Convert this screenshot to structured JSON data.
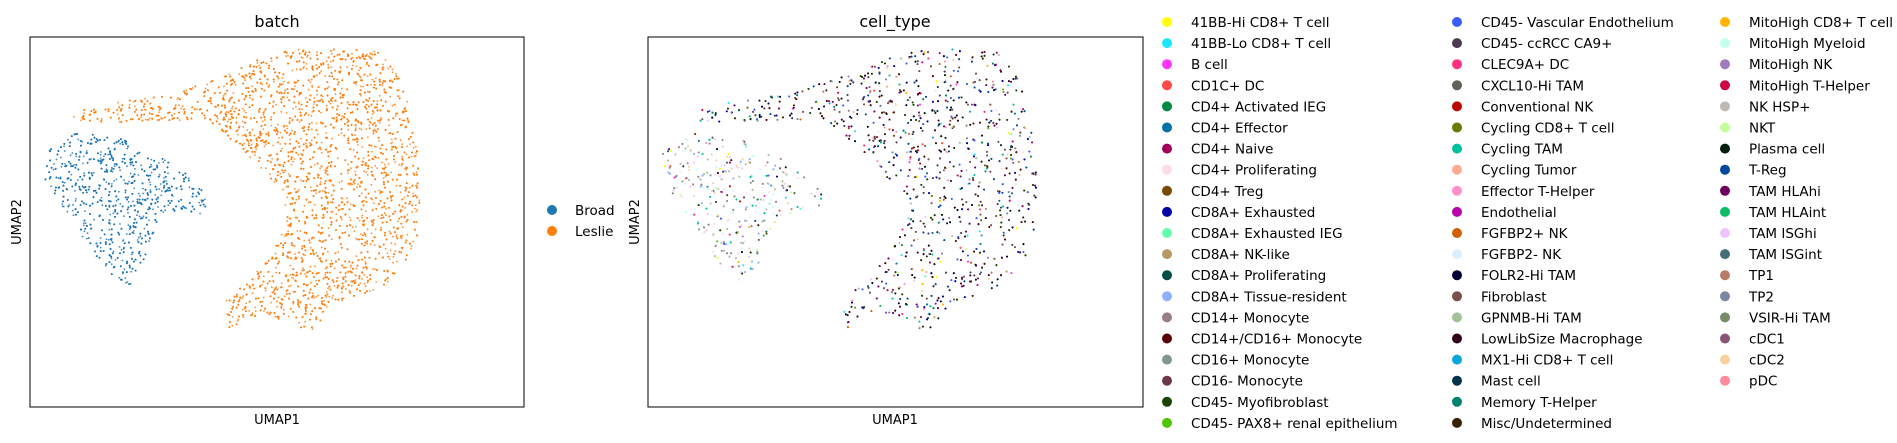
{
  "chart_data": [
    {
      "type": "scatter",
      "title": "batch",
      "xlabel": "UMAP1",
      "ylabel": "UMAP2",
      "grid": false,
      "ticks": false,
      "legend": {
        "placement": "right",
        "entries": [
          {
            "name": "Broad",
            "color": "#1f77b4"
          },
          {
            "name": "Leslie",
            "color": "#ff7f0e"
          }
        ]
      }
    },
    {
      "type": "scatter",
      "title": "cell_type",
      "xlabel": "UMAP1",
      "ylabel": "UMAP2",
      "grid": false,
      "ticks": false,
      "legend": {
        "placement": "right",
        "columns": 3,
        "entries": [
          {
            "name": "41BB-Hi CD8+ T cell",
            "color": "#ffff00"
          },
          {
            "name": "41BB-Lo CD8+ T cell",
            "color": "#1ce6ff"
          },
          {
            "name": "B cell",
            "color": "#ff34ff"
          },
          {
            "name": "CD1C+ DC",
            "color": "#ff4a46"
          },
          {
            "name": "CD4+ Activated IEG",
            "color": "#008941"
          },
          {
            "name": "CD4+ Effector",
            "color": "#006fa6"
          },
          {
            "name": "CD4+ Naive",
            "color": "#a30059"
          },
          {
            "name": "CD4+ Proliferating",
            "color": "#ffdbe5"
          },
          {
            "name": "CD4+ Treg",
            "color": "#7a4900"
          },
          {
            "name": "CD8A+ Exhausted",
            "color": "#0000a6"
          },
          {
            "name": "CD8A+ Exhausted IEG",
            "color": "#63ffac"
          },
          {
            "name": "CD8A+ NK-like",
            "color": "#b79762"
          },
          {
            "name": "CD8A+ Proliferating",
            "color": "#004d43"
          },
          {
            "name": "CD8A+ Tissue-resident",
            "color": "#8fb0ff"
          },
          {
            "name": "CD14+ Monocyte",
            "color": "#997d87"
          },
          {
            "name": "CD14+/CD16+ Monocyte",
            "color": "#5a0007"
          },
          {
            "name": "CD16+ Monocyte",
            "color": "#809693"
          },
          {
            "name": "CD16- Monocyte",
            "color": "#6a3a4c"
          },
          {
            "name": "CD45- Myofibroblast",
            "color": "#1b4400"
          },
          {
            "name": "CD45- PAX8+ renal epithelium",
            "color": "#4fc601"
          },
          {
            "name": "CD45- Vascular Endothelium",
            "color": "#3b5dff"
          },
          {
            "name": "CD45- ccRCC CA9+",
            "color": "#4a3b53"
          },
          {
            "name": "CLEC9A+ DC",
            "color": "#ff2f80"
          },
          {
            "name": "CXCL10-Hi TAM",
            "color": "#61615a"
          },
          {
            "name": "Conventional NK",
            "color": "#ba0900"
          },
          {
            "name": "Cycling CD8+ T cell",
            "color": "#6b7900"
          },
          {
            "name": "Cycling TAM",
            "color": "#00c2a0"
          },
          {
            "name": "Cycling Tumor",
            "color": "#ffaa92"
          },
          {
            "name": "Effector T-Helper",
            "color": "#ff90c9"
          },
          {
            "name": "Endothelial",
            "color": "#b903aa"
          },
          {
            "name": "FGFBP2+ NK",
            "color": "#d16100"
          },
          {
            "name": "FGFBP2- NK",
            "color": "#ddefff"
          },
          {
            "name": "FOLR2-Hi TAM",
            "color": "#000035"
          },
          {
            "name": "Fibroblast",
            "color": "#7b4f4b"
          },
          {
            "name": "GPNMB-Hi TAM",
            "color": "#a1c299"
          },
          {
            "name": "LowLibSize Macrophage",
            "color": "#300018"
          },
          {
            "name": "MX1-Hi CD8+ T cell",
            "color": "#0aa6d8"
          },
          {
            "name": "Mast cell",
            "color": "#013349"
          },
          {
            "name": "Memory T-Helper",
            "color": "#00846f"
          },
          {
            "name": "Misc/Undetermined",
            "color": "#372101"
          },
          {
            "name": "MitoHigh CD8+ T cell",
            "color": "#ffb500"
          },
          {
            "name": "MitoHigh Myeloid",
            "color": "#c2ffed"
          },
          {
            "name": "MitoHigh NK",
            "color": "#a079bf"
          },
          {
            "name": "MitoHigh T-Helper",
            "color": "#cc0744"
          },
          {
            "name": "NK HSP+",
            "color": "#c0b9b2"
          },
          {
            "name": "NKT",
            "color": "#c2ff99"
          },
          {
            "name": "Plasma cell",
            "color": "#001e09"
          },
          {
            "name": "T-Reg",
            "color": "#00489c"
          },
          {
            "name": "TAM HLAhi",
            "color": "#6f0062"
          },
          {
            "name": "TAM HLAint",
            "color": "#0cbd66"
          },
          {
            "name": "TAM ISGhi",
            "color": "#eec3ff"
          },
          {
            "name": "TAM ISGint",
            "color": "#456d75"
          },
          {
            "name": "TP1",
            "color": "#b77b68"
          },
          {
            "name": "TP2",
            "color": "#7a87a1"
          },
          {
            "name": "VSIR-Hi TAM",
            "color": "#788d66"
          },
          {
            "name": "cDC1",
            "color": "#885578"
          },
          {
            "name": "cDC2",
            "color": "#fad09f"
          },
          {
            "name": "pDC",
            "color": "#ff8a9a"
          }
        ]
      }
    }
  ]
}
